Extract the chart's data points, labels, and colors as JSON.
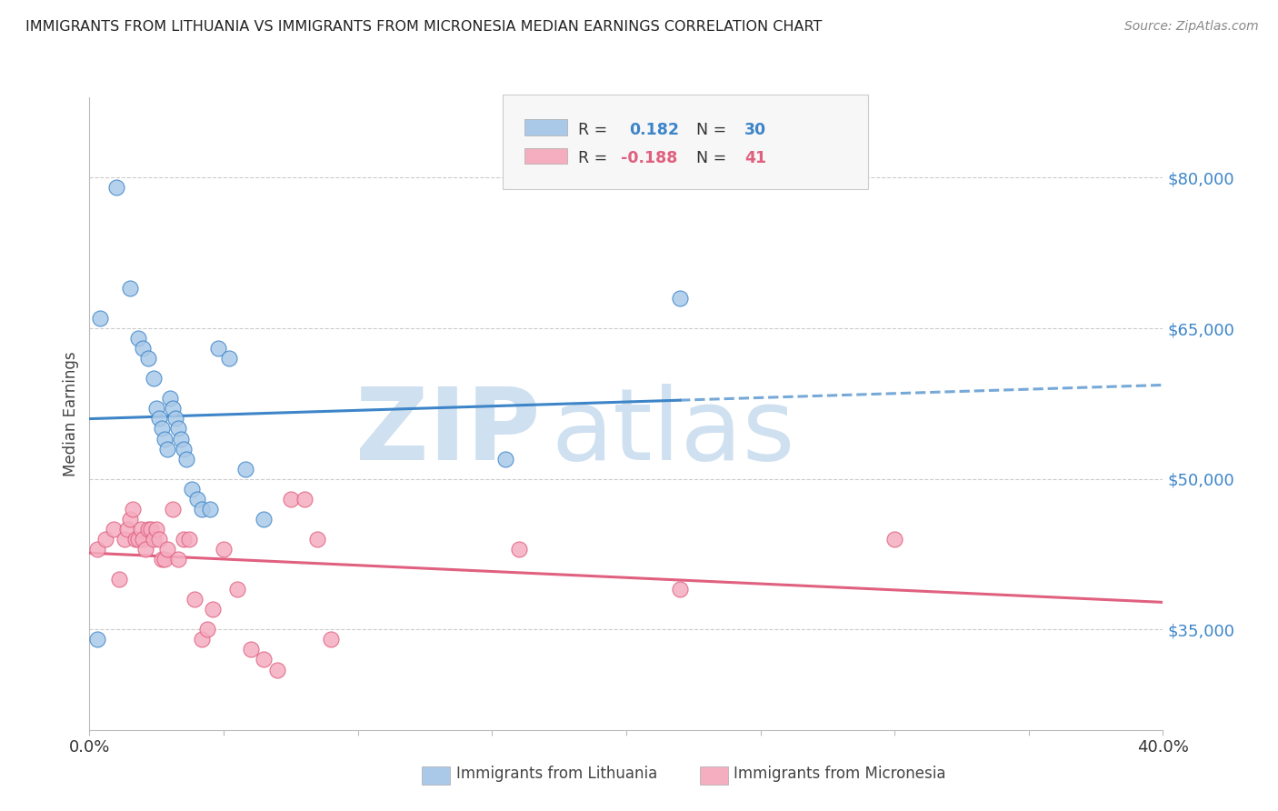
{
  "title": "IMMIGRANTS FROM LITHUANIA VS IMMIGRANTS FROM MICRONESIA MEDIAN EARNINGS CORRELATION CHART",
  "source": "Source: ZipAtlas.com",
  "ylabel": "Median Earnings",
  "ytick_values": [
    35000,
    50000,
    65000,
    80000
  ],
  "ylim": [
    25000,
    88000
  ],
  "xlim": [
    0.0,
    0.4
  ],
  "r_lithuania": 0.182,
  "n_lithuania": 30,
  "r_micronesia": -0.188,
  "n_micronesia": 41,
  "color_lithuania": "#aac9e8",
  "color_micronesia": "#f5adc0",
  "color_line_lithuania": "#3d85c8",
  "color_line_micronesia": "#e06080",
  "color_r_value": "#3d85c8",
  "color_n_value": "#3d85c8",
  "watermark_zip": "ZIP",
  "watermark_atlas": "atlas",
  "watermark_color": "#cfe0f0",
  "lithuania_x": [
    0.003,
    0.01,
    0.015,
    0.018,
    0.02,
    0.022,
    0.024,
    0.025,
    0.026,
    0.027,
    0.028,
    0.029,
    0.03,
    0.031,
    0.032,
    0.033,
    0.034,
    0.035,
    0.036,
    0.038,
    0.04,
    0.042,
    0.045,
    0.048,
    0.052,
    0.058,
    0.065,
    0.155,
    0.22,
    0.004
  ],
  "lithuania_y": [
    34000,
    79000,
    69000,
    64000,
    63000,
    62000,
    60000,
    57000,
    56000,
    55000,
    54000,
    53000,
    58000,
    57000,
    56000,
    55000,
    54000,
    53000,
    52000,
    49000,
    48000,
    47000,
    47000,
    63000,
    62000,
    51000,
    46000,
    52000,
    68000,
    66000
  ],
  "micronesia_x": [
    0.003,
    0.006,
    0.009,
    0.011,
    0.013,
    0.014,
    0.015,
    0.016,
    0.017,
    0.018,
    0.019,
    0.02,
    0.021,
    0.022,
    0.023,
    0.024,
    0.025,
    0.026,
    0.027,
    0.028,
    0.029,
    0.031,
    0.033,
    0.035,
    0.037,
    0.039,
    0.042,
    0.044,
    0.046,
    0.05,
    0.055,
    0.06,
    0.065,
    0.07,
    0.075,
    0.08,
    0.085,
    0.09,
    0.16,
    0.22,
    0.3
  ],
  "micronesia_y": [
    43000,
    44000,
    45000,
    40000,
    44000,
    45000,
    46000,
    47000,
    44000,
    44000,
    45000,
    44000,
    43000,
    45000,
    45000,
    44000,
    45000,
    44000,
    42000,
    42000,
    43000,
    47000,
    42000,
    44000,
    44000,
    38000,
    34000,
    35000,
    37000,
    43000,
    39000,
    33000,
    32000,
    31000,
    48000,
    48000,
    44000,
    34000,
    43000,
    39000,
    44000
  ]
}
